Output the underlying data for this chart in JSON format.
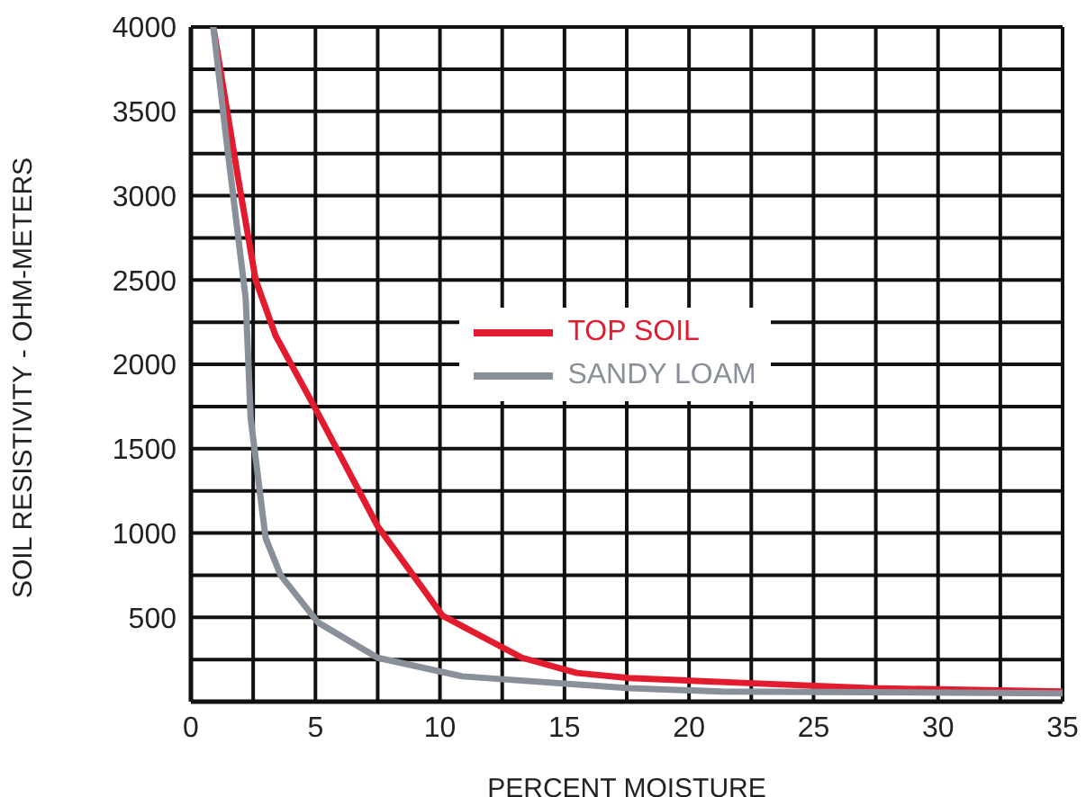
{
  "chart_data": {
    "type": "line",
    "xlabel": "PERCENT MOISTURE",
    "ylabel": "SOIL RESISTIVITY - OHM-METERS",
    "xlim": [
      0,
      35
    ],
    "ylim": [
      0,
      4000
    ],
    "xticks": [
      0,
      {
        "value": 2.5,
        "label": null
      },
      5,
      {
        "value": 7.5,
        "label": null
      },
      10,
      {
        "value": 12.5,
        "label": null
      },
      15,
      {
        "value": 17.5,
        "label": null
      },
      20,
      {
        "value": 22.5,
        "label": null
      },
      25,
      {
        "value": 27.5,
        "label": null
      },
      30,
      {
        "value": 32.5,
        "label": null
      },
      35
    ],
    "yticks": [
      {
        "value": 0,
        "label": null
      },
      {
        "value": 250,
        "label": null
      },
      500,
      {
        "value": 750,
        "label": null
      },
      1000,
      {
        "value": 1250,
        "label": null
      },
      1500,
      {
        "value": 1750,
        "label": null
      },
      2000,
      {
        "value": 2250,
        "label": null
      },
      2500,
      {
        "value": 2750,
        "label": null
      },
      3000,
      {
        "value": 3250,
        "label": null
      },
      3500,
      {
        "value": 3750,
        "label": null
      },
      4000
    ],
    "grid": true,
    "legend": "center",
    "marker": "none",
    "line_style": "solid",
    "series": [
      {
        "name": "TOP SOIL",
        "color": "#e31b2f",
        "x": [
          0.9,
          1.9,
          2.6,
          3.4,
          5.1,
          7.5,
          10.1,
          13.3,
          15.5,
          17.6,
          22.4,
          27.3,
          35
        ],
        "values": [
          4000,
          3100,
          2500,
          2170,
          1710,
          1040,
          510,
          260,
          170,
          140,
          110,
          80,
          60
        ]
      },
      {
        "name": "SANDY LOAM",
        "color": "#8a9099",
        "x": [
          0.9,
          1.45,
          2.2,
          2.4,
          3.0,
          3.6,
          5.1,
          7.5,
          10.9,
          17.6,
          21.3,
          35
        ],
        "values": [
          4000,
          3300,
          2390,
          1680,
          970,
          750,
          470,
          260,
          150,
          80,
          60,
          50
        ]
      }
    ]
  }
}
